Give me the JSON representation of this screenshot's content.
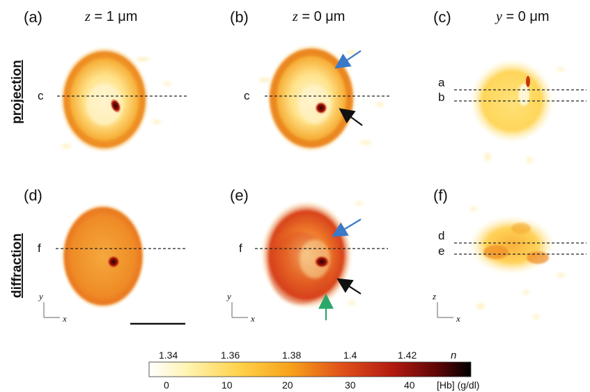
{
  "panels": {
    "a": "(a)",
    "b": "(b)",
    "c": "(c)",
    "d": "(d)",
    "e": "(e)",
    "f": "(f)"
  },
  "column_titles": {
    "col1": {
      "var": "z",
      "eq": " = 1 ",
      "unit": "μm"
    },
    "col2": {
      "var": "z",
      "eq": " = 0 ",
      "unit": "μm"
    },
    "col3": {
      "var": "y",
      "eq": " = 0 ",
      "unit": "μm"
    }
  },
  "row_titles": {
    "top": "projection",
    "bottom": "diffraction"
  },
  "line_labels": {
    "a_c": "c",
    "b_c": "c",
    "c_a": "a",
    "c_b": "b",
    "d_f": "f",
    "e_f": "f",
    "f_d": "d",
    "f_e": "e"
  },
  "axes": {
    "d": {
      "v": "y",
      "h": "x"
    },
    "e": {
      "v": "y",
      "h": "x"
    },
    "f": {
      "v": "z",
      "h": "x"
    }
  },
  "colorbar": {
    "top_ticks": [
      "1.34",
      "1.36",
      "1.38",
      "1.4",
      "1.42"
    ],
    "top_label": "n",
    "bottom_ticks": [
      "0",
      "10",
      "20",
      "30",
      "40"
    ],
    "bottom_label": "[Hb] (g/dl)",
    "colors": [
      "#ffffff",
      "#fff3b0",
      "#ffd24a",
      "#f7a21b",
      "#e0501a",
      "#b01a10",
      "#5a0606",
      "#000000"
    ]
  },
  "arrow_colors": {
    "blue": "#3a78c8",
    "black": "#111111",
    "green": "#2aa86a"
  }
}
